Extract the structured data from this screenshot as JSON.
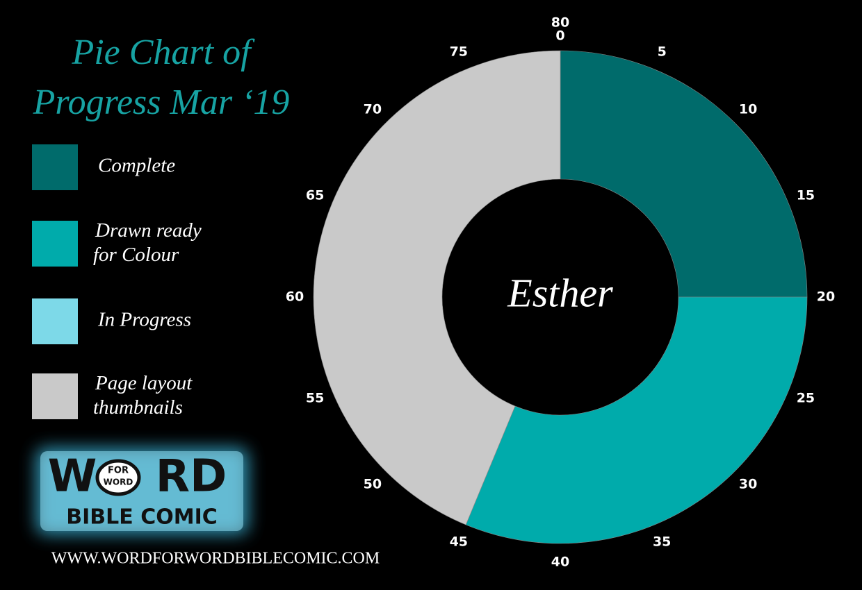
{
  "chart_data": {
    "type": "donut",
    "title_lines": [
      "Pie Chart of",
      "Progress Mar ‘19"
    ],
    "center_label": "Esther",
    "series": [
      {
        "name": "Complete",
        "color": "#006b6b",
        "value": 20
      },
      {
        "name": "Drawn ready|for Colour",
        "color": "#00abab",
        "value": 25
      },
      {
        "name": "In Progress",
        "color": "#7dd9e8",
        "value": 0
      },
      {
        "name": "Page layout|thumbnails",
        "color": "#c9c9c9",
        "value": 35
      }
    ],
    "lim": [
      0,
      80
    ],
    "ticks": [
      0,
      5,
      10,
      15,
      20,
      25,
      30,
      35,
      40,
      45,
      50,
      55,
      60,
      65,
      70,
      75,
      80
    ]
  },
  "logo": {
    "left": "W",
    "right": "RD",
    "bubble": [
      "FOR",
      "WORD"
    ],
    "subtitle": "BIBLE COMIC"
  },
  "url": "WWW.WORDFORWORDBIBLECOMIC.COM"
}
